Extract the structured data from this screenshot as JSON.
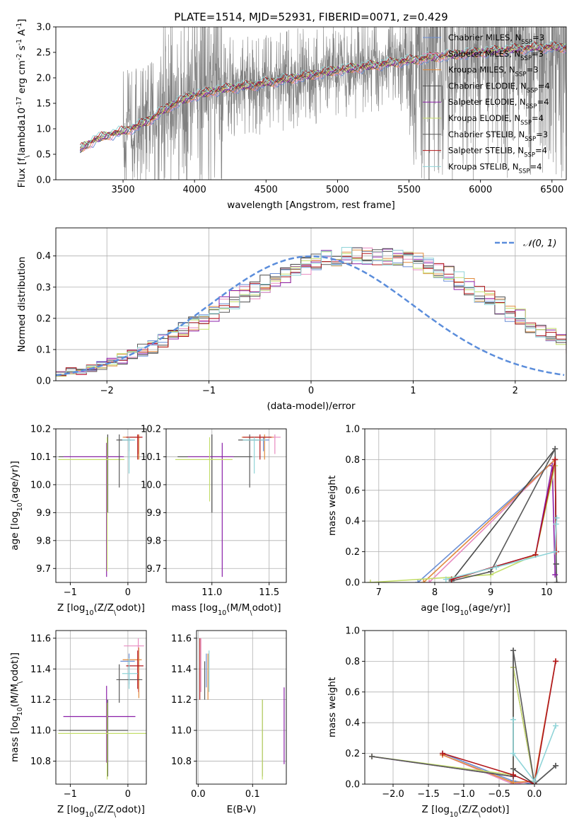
{
  "colors": {
    "chabrier_miles": "#6b8fd6",
    "salpeter_miles": "#e88ac0",
    "kroupa_miles": "#e08a3c",
    "chabrier_elodie": "#4a4a4a",
    "salpeter_elodie": "#8b1fa8",
    "kroupa_elodie": "#c4de6a",
    "chabrier_stelib": "#5a5a5a",
    "salpeter_stelib": "#b2181b",
    "kroupa_stelib": "#8fd4d8",
    "spectrum": "#808080",
    "normal_curve": "#5b8ddb",
    "grid": "#b0b0b0"
  },
  "chart_data": [
    {
      "type": "line",
      "title": "PLATE=1514, MJD=52931, FIBERID=0071, z=0.429",
      "xlabel": "wavelength [Angstrom, rest frame]",
      "ylabel": "Flux [f$_\\lambda$10$^{-17}$ erg cm$^{-2}$ s$^{-1}$ A$^{-1}$]",
      "xlim": [
        3030,
        6600
      ],
      "ylim": [
        0,
        3
      ],
      "xticks": [
        "3500",
        "4000",
        "4500",
        "5000",
        "5500",
        "6000",
        "6500"
      ],
      "yticks": [
        "0.0",
        "0.5",
        "1.0",
        "1.5",
        "2.0",
        "2.5",
        "3.0"
      ],
      "legend_position": "top-right",
      "legend": [
        {
          "base": "Chabrier MILES, N",
          "sub": "SSP",
          "tail": "=3",
          "color_key": "chabrier_miles"
        },
        {
          "base": "Salpeter MILES, N",
          "sub": "SSP",
          "tail": "=3",
          "color_key": "salpeter_miles"
        },
        {
          "base": "Kroupa MILES, N",
          "sub": "SSP",
          "tail": "=3",
          "color_key": "kroupa_miles"
        },
        {
          "base": "Chabrier ELODIE, N",
          "sub": "SSP",
          "tail": "=4",
          "color_key": "chabrier_elodie"
        },
        {
          "base": "Salpeter ELODIE, N",
          "sub": "SSP",
          "tail": "=4",
          "color_key": "salpeter_elodie"
        },
        {
          "base": "Kroupa ELODIE, N",
          "sub": "SSP",
          "tail": "=4",
          "color_key": "kroupa_elodie"
        },
        {
          "base": "Chabrier STELIB, N",
          "sub": "SSP",
          "tail": "=3",
          "color_key": "chabrier_stelib"
        },
        {
          "base": "Salpeter STELIB, N",
          "sub": "SSP",
          "tail": "=4",
          "color_key": "salpeter_stelib"
        },
        {
          "base": "Kroupa STELIB, N",
          "sub": "SSP",
          "tail": "=4",
          "color_key": "kroupa_stelib"
        }
      ],
      "continuum": {
        "x": [
          3200,
          3300,
          3400,
          3500,
          3600,
          3700,
          3800,
          3900,
          4000,
          4100,
          4200,
          4300,
          4400,
          4500,
          4600,
          4700,
          4800,
          4900,
          5000,
          5200,
          5400,
          5600,
          5800,
          6000,
          6200,
          6400
        ],
        "y": [
          0.6,
          0.78,
          0.88,
          0.95,
          1.05,
          1.2,
          1.4,
          1.55,
          1.65,
          1.72,
          1.78,
          1.82,
          1.85,
          1.9,
          1.95,
          2.0,
          2.05,
          2.1,
          2.15,
          2.22,
          2.3,
          2.38,
          2.45,
          2.5,
          2.55,
          2.6
        ]
      }
    },
    {
      "type": "bar",
      "xlabel": "(data-model)/error",
      "ylabel": "Normed distribution",
      "xlim": [
        -2.5,
        2.5
      ],
      "ylim": [
        0,
        0.49
      ],
      "xticks": [
        "−2",
        "−1",
        "0",
        "1",
        "2"
      ],
      "yticks": [
        "0.0",
        "0.1",
        "0.2",
        "0.3",
        "0.4"
      ],
      "legend_label": "𝒩(0, 1)",
      "legend_position": "top-right",
      "bin_width": 0.1,
      "bins_start": -2.5,
      "base_values": [
        0.02,
        0.03,
        0.03,
        0.04,
        0.05,
        0.06,
        0.07,
        0.08,
        0.1,
        0.11,
        0.13,
        0.14,
        0.16,
        0.18,
        0.19,
        0.21,
        0.24,
        0.26,
        0.28,
        0.29,
        0.31,
        0.32,
        0.34,
        0.35,
        0.37,
        0.38,
        0.39,
        0.395,
        0.4,
        0.4,
        0.4,
        0.4,
        0.4,
        0.395,
        0.39,
        0.38,
        0.37,
        0.35,
        0.34,
        0.32,
        0.3,
        0.28,
        0.26,
        0.24,
        0.22,
        0.2,
        0.18,
        0.16,
        0.15,
        0.13,
        0.11,
        0.1,
        0.09,
        0.08,
        0.07,
        0.06,
        0.05,
        0.04,
        0.04,
        0.03,
        0.03,
        0.03,
        0.03,
        0.03,
        0.03,
        0.03,
        0.03,
        0.03,
        0.03,
        0.03
      ]
    },
    {
      "type": "scatter",
      "xlabel": "Z [log$_{10}$(Z/Z$_\\odot$)]",
      "ylabel": "age  [log$_{10}$(age/yr)]",
      "xlim": [
        -1.25,
        0.32
      ],
      "ylim": [
        9.65,
        10.2
      ],
      "xticks": [
        "−1",
        "0"
      ],
      "yticks": [
        "9.7",
        "9.8",
        "9.9",
        "10.0",
        "10.1",
        "10.2"
      ],
      "points": [
        {
          "series": "chabrier_miles",
          "x": 0.02,
          "y": 10.16,
          "xerr": [
            0.15,
            0.1
          ],
          "yerr": [
            0.04,
            0.01
          ]
        },
        {
          "series": "salpeter_miles",
          "x": 0.18,
          "y": 10.17,
          "xerr": [
            0.25,
            0.08
          ],
          "yerr": [
            0.06,
            0.01
          ]
        },
        {
          "series": "kroupa_miles",
          "x": 0.19,
          "y": 10.17,
          "xerr": [
            0.28,
            0.05
          ],
          "yerr": [
            0.08,
            0.01
          ]
        },
        {
          "series": "chabrier_elodie",
          "x": -0.35,
          "y": 10.1,
          "xerr": [
            0.85,
            0.25
          ],
          "yerr": [
            0.2,
            0.08
          ]
        },
        {
          "series": "salpeter_elodie",
          "x": -0.37,
          "y": 10.1,
          "xerr": [
            0.75,
            0.3
          ],
          "yerr": [
            0.43,
            0.05
          ]
        },
        {
          "series": "kroupa_elodie",
          "x": -0.36,
          "y": 10.09,
          "xerr": [
            0.85,
            0.3
          ],
          "yerr": [
            0.4,
            0.08
          ]
        },
        {
          "series": "chabrier_stelib",
          "x": -0.15,
          "y": 10.16,
          "xerr": [
            0.05,
            0.2
          ],
          "yerr": [
            0.17,
            0.02
          ]
        },
        {
          "series": "salpeter_stelib",
          "x": 0.17,
          "y": 10.17,
          "xerr": [
            0.2,
            0.08
          ],
          "yerr": [
            0.08,
            0.01
          ]
        },
        {
          "series": "kroupa_stelib",
          "x": 0.02,
          "y": 10.16,
          "xerr": [
            0.12,
            0.1
          ],
          "yerr": [
            0.12,
            0.01
          ]
        }
      ]
    },
    {
      "type": "scatter",
      "xlabel": "mass [log$_{10}$(M/M$_\\odot$)]",
      "ylabel": "",
      "xlim": [
        10.6,
        11.65
      ],
      "ylim": [
        9.65,
        10.2
      ],
      "xticks": [
        "11.0",
        "11.5"
      ],
      "yticks": [
        "9.7",
        "9.8",
        "9.9",
        "10.0",
        "10.1",
        "10.2"
      ],
      "points": [
        {
          "series": "chabrier_miles",
          "x": 11.45,
          "y": 10.16,
          "xerr": [
            0.15,
            0.05
          ],
          "yerr": [
            0.04,
            0.01
          ]
        },
        {
          "series": "salpeter_miles",
          "x": 11.55,
          "y": 10.17,
          "xerr": [
            0.2,
            0.05
          ],
          "yerr": [
            0.06,
            0.01
          ]
        },
        {
          "series": "kroupa_miles",
          "x": 11.46,
          "y": 10.17,
          "xerr": [
            0.2,
            0.08
          ],
          "yerr": [
            0.08,
            0.01
          ]
        },
        {
          "series": "chabrier_elodie",
          "x": 11.0,
          "y": 10.1,
          "xerr": [
            0.3,
            0.35
          ],
          "yerr": [
            0.2,
            0.08
          ]
        },
        {
          "series": "salpeter_elodie",
          "x": 11.09,
          "y": 10.1,
          "xerr": [
            0.3,
            0.1
          ],
          "yerr": [
            0.43,
            0.05
          ]
        },
        {
          "series": "kroupa_elodie",
          "x": 10.98,
          "y": 10.09,
          "xerr": [
            0.3,
            0.2
          ],
          "yerr": [
            0.15,
            0.08
          ]
        },
        {
          "series": "chabrier_stelib",
          "x": 11.33,
          "y": 10.16,
          "xerr": [
            0.1,
            0.1
          ],
          "yerr": [
            0.17,
            0.02
          ]
        },
        {
          "series": "salpeter_stelib",
          "x": 11.42,
          "y": 10.17,
          "xerr": [
            0.15,
            0.1
          ],
          "yerr": [
            0.08,
            0.01
          ]
        },
        {
          "series": "kroupa_stelib",
          "x": 11.37,
          "y": 10.16,
          "xerr": [
            0.1,
            0.1
          ],
          "yerr": [
            0.12,
            0.01
          ]
        }
      ]
    },
    {
      "type": "line",
      "xlabel": "age  [log$_{10}$(age/yr)]",
      "ylabel": "mass weight",
      "xlim": [
        6.75,
        10.35
      ],
      "ylim": [
        0,
        1
      ],
      "xticks": [
        "7",
        "8",
        "9",
        "10"
      ],
      "yticks": [
        "0.0",
        "0.2",
        "0.4",
        "0.6",
        "0.8",
        "1.0"
      ],
      "series": [
        {
          "series": "chabrier_miles",
          "x": [
            7.7,
            10.15,
            10.17
          ],
          "y": [
            0.0,
            0.8,
            0.2
          ]
        },
        {
          "series": "salpeter_miles",
          "x": [
            7.9,
            10.15,
            10.17
          ],
          "y": [
            0.0,
            0.8,
            0.2
          ]
        },
        {
          "series": "kroupa_miles",
          "x": [
            7.8,
            10.15,
            10.17
          ],
          "y": [
            0.0,
            0.8,
            0.2
          ]
        },
        {
          "series": "chabrier_elodie",
          "x": [
            8.3,
            10.15,
            10.17,
            10.18
          ],
          "y": [
            0.01,
            0.87,
            0.12,
            0.0
          ]
        },
        {
          "series": "salpeter_elodie",
          "x": [
            8.3,
            9.8,
            10.1,
            10.15
          ],
          "y": [
            0.02,
            0.18,
            0.76,
            0.05
          ]
        },
        {
          "series": "kroupa_elodie",
          "x": [
            6.85,
            9.0,
            9.8,
            10.15
          ],
          "y": [
            0.0,
            0.05,
            0.18,
            0.76
          ]
        },
        {
          "series": "chabrier_stelib",
          "x": [
            8.3,
            9.0,
            10.15,
            10.17
          ],
          "y": [
            0.01,
            0.07,
            0.87,
            0.12
          ]
        },
        {
          "series": "salpeter_stelib",
          "x": [
            8.3,
            9.8,
            10.15,
            10.17
          ],
          "y": [
            0.02,
            0.18,
            0.8,
            0.2
          ]
        },
        {
          "series": "kroupa_stelib",
          "x": [
            8.2,
            9.1,
            10.15,
            10.17,
            10.18
          ],
          "y": [
            0.02,
            0.1,
            0.2,
            0.38,
            0.42
          ]
        }
      ]
    },
    {
      "type": "scatter",
      "xlabel": "Z [log$_{10}$(Z/Z$_\\odot$)]",
      "ylabel": "mass [log$_{10}$(M/M$_\\odot$)]",
      "xlim": [
        -1.25,
        0.32
      ],
      "ylim": [
        10.65,
        11.65
      ],
      "xticks": [
        "−1",
        "0"
      ],
      "yticks": [
        "10.8",
        "11.0",
        "11.2",
        "11.4",
        "11.6"
      ],
      "points": [
        {
          "series": "chabrier_miles",
          "x": 0.02,
          "y": 11.45,
          "xerr": [
            0.15,
            0.1
          ],
          "yerr": [
            0.15,
            0.05
          ]
        },
        {
          "series": "salpeter_miles",
          "x": 0.18,
          "y": 11.55,
          "xerr": [
            0.25,
            0.1
          ],
          "yerr": [
            0.3,
            0.05
          ]
        },
        {
          "series": "kroupa_miles",
          "x": 0.19,
          "y": 11.46,
          "xerr": [
            0.28,
            0.05
          ],
          "yerr": [
            0.25,
            0.08
          ]
        },
        {
          "series": "chabrier_elodie",
          "x": -0.35,
          "y": 11.0,
          "xerr": [
            0.85,
            0.35
          ],
          "yerr": [
            0.3,
            0.2
          ]
        },
        {
          "series": "salpeter_elodie",
          "x": -0.37,
          "y": 11.09,
          "xerr": [
            0.75,
            0.5
          ],
          "yerr": [
            0.3,
            0.2
          ]
        },
        {
          "series": "kroupa_elodie",
          "x": -0.36,
          "y": 10.98,
          "xerr": [
            0.85,
            0.7
          ],
          "yerr": [
            0.3,
            0.2
          ]
        },
        {
          "series": "chabrier_stelib",
          "x": -0.15,
          "y": 11.33,
          "xerr": [
            0.05,
            0.4
          ],
          "yerr": [
            0.15,
            0.1
          ]
        },
        {
          "series": "salpeter_stelib",
          "x": 0.17,
          "y": 11.42,
          "xerr": [
            0.2,
            0.1
          ],
          "yerr": [
            0.15,
            0.1
          ]
        },
        {
          "series": "kroupa_stelib",
          "x": 0.02,
          "y": 11.37,
          "xerr": [
            0.12,
            0.15
          ],
          "yerr": [
            0.1,
            0.1
          ]
        }
      ]
    },
    {
      "type": "scatter",
      "xlabel": "E(B-V)",
      "ylabel": "",
      "xlim": [
        -0.003,
        0.162
      ],
      "ylim": [
        10.65,
        11.65
      ],
      "xticks": [
        "0.0",
        "0.1"
      ],
      "yticks": [
        "10.8",
        "11.0",
        "11.2",
        "11.4",
        "11.6"
      ],
      "points": [
        {
          "series": "chabrier_miles",
          "x": 0.015,
          "y": 11.4,
          "yerr": [
            0.12,
            0.1
          ]
        },
        {
          "series": "salpeter_miles",
          "x": 0.005,
          "y": 11.55,
          "yerr": [
            0.3,
            0.05
          ]
        },
        {
          "series": "kroupa_miles",
          "x": 0.018,
          "y": 11.4,
          "yerr": [
            0.2,
            0.1
          ]
        },
        {
          "series": "chabrier_elodie",
          "x": 0.118,
          "y": 11.0,
          "yerr": [
            0.3,
            0.2
          ]
        },
        {
          "series": "salpeter_elodie",
          "x": 0.158,
          "y": 11.0,
          "yerr": [
            0.22,
            0.28
          ]
        },
        {
          "series": "kroupa_elodie",
          "x": 0.118,
          "y": 11.0,
          "yerr": [
            0.32,
            0.2
          ]
        },
        {
          "series": "chabrier_stelib",
          "x": 0.012,
          "y": 11.35,
          "yerr": [
            0.15,
            0.1
          ]
        },
        {
          "series": "salpeter_stelib",
          "x": 0.003,
          "y": 11.4,
          "yerr": [
            0.2,
            0.2
          ]
        },
        {
          "series": "kroupa_stelib",
          "x": 0.02,
          "y": 11.4,
          "yerr": [
            0.15,
            0.12
          ]
        }
      ]
    },
    {
      "type": "line",
      "xlabel": "Z [log$_{10}$(Z/Z$_\\odot$)]",
      "ylabel": "mass weight",
      "xlim": [
        -2.4,
        0.45
      ],
      "ylim": [
        0,
        1
      ],
      "xticks": [
        "−2.0",
        "−1.5",
        "−1.0",
        "−0.5",
        "0.0"
      ],
      "yticks": [
        "0.0",
        "0.2",
        "0.4",
        "0.6",
        "0.8",
        "1.0"
      ],
      "series": [
        {
          "series": "chabrier_miles",
          "x": [
            -1.3,
            -0.3,
            0.0,
            0.3
          ],
          "y": [
            0.2,
            0.02,
            0.0,
            0.8
          ]
        },
        {
          "series": "salpeter_miles",
          "x": [
            -1.3,
            -0.3,
            0.0,
            0.3
          ],
          "y": [
            0.19,
            0.0,
            0.02,
            0.8
          ]
        },
        {
          "series": "kroupa_miles",
          "x": [
            -1.3,
            -0.3,
            0.0,
            0.3
          ],
          "y": [
            0.19,
            0.01,
            0.02,
            0.8
          ]
        },
        {
          "series": "chabrier_elodie",
          "x": [
            -0.3,
            -0.3,
            0.0,
            0.3
          ],
          "y": [
            0.87,
            0.1,
            0.0,
            0.12
          ]
        },
        {
          "series": "salpeter_elodie",
          "x": [
            -2.3,
            -0.3,
            -0.3,
            0.0
          ],
          "y": [
            0.18,
            0.05,
            0.76,
            0.0
          ]
        },
        {
          "series": "kroupa_elodie",
          "x": [
            -2.3,
            -0.3,
            -0.3,
            0.0
          ],
          "y": [
            0.18,
            0.06,
            0.76,
            0.0
          ]
        },
        {
          "series": "chabrier_stelib",
          "x": [
            -2.3,
            -0.3,
            -0.3,
            0.0,
            0.3
          ],
          "y": [
            0.18,
            0.05,
            0.87,
            0.0,
            0.12
          ]
        },
        {
          "series": "salpeter_stelib",
          "x": [
            -1.3,
            -0.3,
            0.0,
            0.3
          ],
          "y": [
            0.2,
            0.06,
            0.0,
            0.8
          ]
        },
        {
          "series": "kroupa_stelib",
          "x": [
            -0.3,
            -0.3,
            0.0,
            0.3
          ],
          "y": [
            0.42,
            0.2,
            0.02,
            0.38
          ]
        }
      ]
    }
  ]
}
